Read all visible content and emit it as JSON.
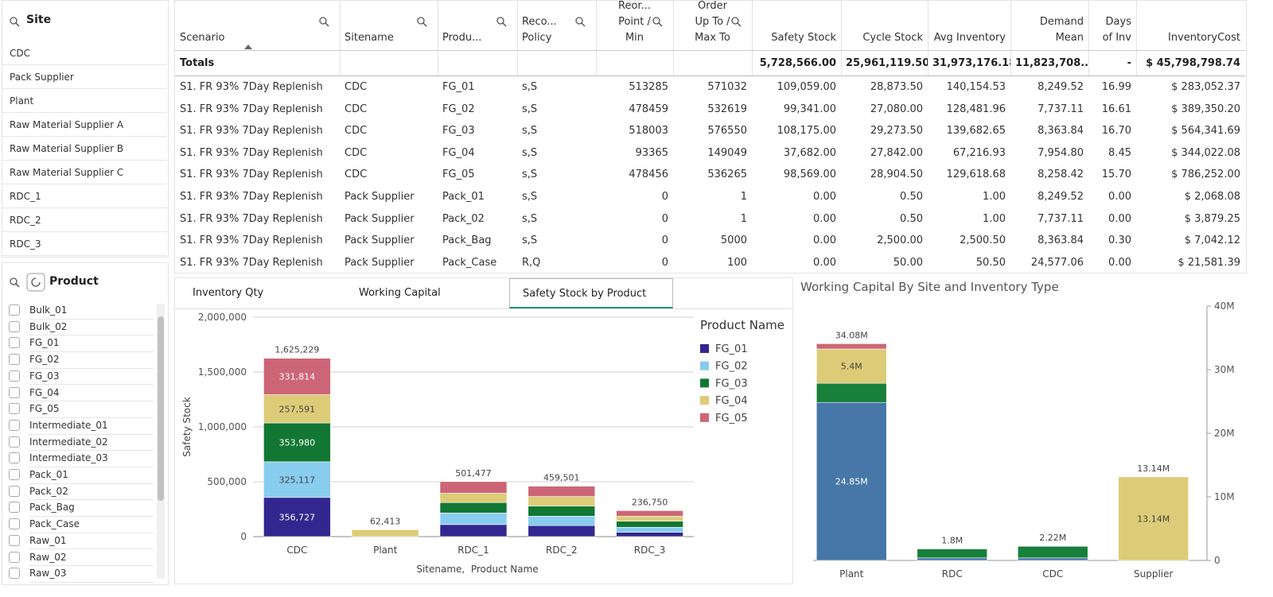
{
  "site_filter": {
    "title": "Site",
    "items": [
      "CDC",
      "Pack Supplier",
      "Plant",
      "Raw Material Supplier A",
      "Raw Material Supplier B",
      "Raw Material Supplier C",
      "RDC_1",
      "RDC_2",
      "RDC_3"
    ]
  },
  "product_filter": {
    "title": "Product",
    "items": [
      "Bulk_01",
      "Bulk_02",
      "FG_01",
      "FG_02",
      "FG_03",
      "FG_04",
      "FG_05",
      "Intermediate_01",
      "Intermediate_02",
      "Intermediate_03",
      "Pack_01",
      "Pack_02",
      "Pack_Bag",
      "Pack_Case",
      "Raw_01",
      "Raw_02",
      "Raw_03"
    ]
  },
  "table": {
    "columns": [
      "Scenario",
      "Sitename",
      "Produ...",
      "Reco...\nPolicy",
      "Reor...\nPoint /\nMin",
      "Order\nUp To /\nMax To",
      "Safety Stock",
      "Cycle Stock",
      "Avg Inventory",
      "Demand\nMean",
      "Days\nof Inv",
      "InventoryCost"
    ],
    "totals": [
      "Totals",
      null,
      null,
      null,
      null,
      null,
      "5,728,566.00",
      "25,961,119.50",
      "31,973,176.18",
      "11,823,708....",
      "-",
      "$ 45,798,798.74"
    ],
    "rows": [
      [
        "S1. FR 93% 7Day Replenish",
        "CDC",
        "FG_01",
        "s,S",
        "513285",
        "571032",
        "109,059.00",
        "28,873.50",
        "140,154.53",
        "8,249.52",
        "16.99",
        "$ 283,052.37"
      ],
      [
        "S1. FR 93% 7Day Replenish",
        "CDC",
        "FG_02",
        "s,S",
        "478459",
        "532619",
        "99,341.00",
        "27,080.00",
        "128,481.96",
        "7,737.11",
        "16.61",
        "$ 389,350.20"
      ],
      [
        "S1. FR 93% 7Day Replenish",
        "CDC",
        "FG_03",
        "s,S",
        "518003",
        "576550",
        "108,175.00",
        "29,273.50",
        "139,682.65",
        "8,363.84",
        "16.70",
        "$ 564,341.69"
      ],
      [
        "S1. FR 93% 7Day Replenish",
        "CDC",
        "FG_04",
        "s,S",
        "93365",
        "149049",
        "37,682.00",
        "27,842.00",
        "67,216.93",
        "7,954.80",
        "8.45",
        "$ 344,022.08"
      ],
      [
        "S1. FR 93% 7Day Replenish",
        "CDC",
        "FG_05",
        "s,S",
        "478456",
        "536265",
        "98,569.00",
        "28,904.50",
        "129,618.68",
        "8,258.42",
        "15.70",
        "$ 786,252.00"
      ],
      [
        "S1. FR 93% 7Day Replenish",
        "Pack Supplier",
        "Pack_01",
        "s,S",
        "0",
        "1",
        "0.00",
        "0.50",
        "1.00",
        "8,249.52",
        "0.00",
        "$ 2,068.08"
      ],
      [
        "S1. FR 93% 7Day Replenish",
        "Pack Supplier",
        "Pack_02",
        "s,S",
        "0",
        "1",
        "0.00",
        "0.50",
        "1.00",
        "7,737.11",
        "0.00",
        "$ 3,879.25"
      ],
      [
        "S1. FR 93% 7Day Replenish",
        "Pack Supplier",
        "Pack_Bag",
        "s,S",
        "0",
        "5000",
        "0.00",
        "2,500.00",
        "2,500.50",
        "8,363.84",
        "0.30",
        "$ 7,042.12"
      ],
      [
        "S1. FR 93% 7Day Replenish",
        "Pack Supplier",
        "Pack_Case",
        "R,Q",
        "0",
        "100",
        "0.00",
        "50.00",
        "50.50",
        "24,577.06",
        "0.00",
        "$ 21,581.39"
      ]
    ]
  },
  "tabs": [
    "Inventory Qty",
    "Working Capital",
    "Safety Stock by Product"
  ],
  "active_tab": 2,
  "chart_data": [
    {
      "type": "stacked_bar",
      "xlabel": "Sitename,  Product Name",
      "ylabel": "Safety Stock",
      "legend_title": "Product Name",
      "legend": "right",
      "grid": true,
      "categories": [
        "CDC",
        "Plant",
        "RDC_1",
        "RDC_2",
        "RDC_3"
      ],
      "series": [
        {
          "name": "FG_01",
          "color": "#32278f",
          "values": [
            356727,
            0,
            110000,
            100000,
            40000
          ],
          "value_labels": [
            "356,727",
            null,
            null,
            null,
            null
          ]
        },
        {
          "name": "FG_02",
          "color": "#88ccee",
          "values": [
            325117,
            0,
            105000,
            86000,
            45000
          ],
          "value_labels": [
            "325,117",
            null,
            null,
            null,
            null
          ]
        },
        {
          "name": "FG_03",
          "color": "#117733",
          "values": [
            353980,
            0,
            95000,
            93000,
            55000
          ],
          "value_labels": [
            "353,980",
            null,
            null,
            null,
            null
          ]
        },
        {
          "name": "FG_04",
          "color": "#ddcc77",
          "values": [
            257591,
            62413,
            85000,
            86000,
            45000
          ],
          "value_labels": [
            "257,591",
            null,
            null,
            null,
            null
          ]
        },
        {
          "name": "FG_05",
          "color": "#cc6677",
          "values": [
            331814,
            0,
            106477,
            94501,
            51750
          ],
          "value_labels": [
            "331,814",
            null,
            null,
            null,
            null
          ]
        }
      ],
      "totals": [
        1625229,
        62413,
        501477,
        459501,
        236750
      ],
      "total_labels": [
        "1,625,229",
        "62,413",
        "501,477",
        "459,501",
        "236,750"
      ],
      "ylim": [
        0,
        2000000
      ],
      "yticks": [
        0,
        {
          "value": 500000,
          "label": "500,000"
        },
        {
          "value": 1000000,
          "label": "1,000,000"
        },
        {
          "value": 1500000,
          "label": "1,500,000"
        },
        {
          "value": 2000000,
          "label": "2,000,000"
        }
      ]
    },
    {
      "type": "stacked_bar",
      "title": "Working Capital By Site and Inventory Type",
      "yaxis_position": "right",
      "grid": false,
      "categories": [
        "Plant",
        "RDC",
        "CDC",
        "Supplier"
      ],
      "series": [
        {
          "color": "#4677a8",
          "values": [
            24850000,
            400000,
            400000,
            0
          ],
          "value_labels": [
            "24.85M",
            null,
            null,
            null
          ]
        },
        {
          "color": "#17803a",
          "values": [
            3000000,
            1400000,
            1820000,
            0
          ],
          "value_labels": [
            null,
            null,
            null,
            null
          ]
        },
        {
          "color": "#ddcc77",
          "values": [
            5400000,
            0,
            0,
            13140000
          ],
          "value_labels": [
            "5.4M",
            null,
            null,
            "13.14M"
          ]
        },
        {
          "color": "#cc6677",
          "values": [
            830000,
            0,
            0,
            0
          ],
          "value_labels": [
            null,
            null,
            null,
            null
          ]
        }
      ],
      "totals": [
        34080000,
        1800000,
        2220000,
        13140000
      ],
      "total_labels": [
        "34.08M",
        "1.8M",
        "2.22M",
        "13.14M"
      ],
      "ylim": [
        0,
        40000000
      ],
      "yticks": [
        0,
        {
          "value": 10000000,
          "label": "10M"
        },
        {
          "value": 20000000,
          "label": "20M"
        },
        {
          "value": 30000000,
          "label": "30M"
        },
        {
          "value": 40000000,
          "label": "40M"
        }
      ]
    }
  ]
}
